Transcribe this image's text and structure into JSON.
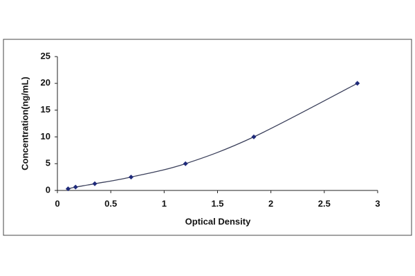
{
  "chart_data": {
    "type": "scatter",
    "x_label": "Optical Density",
    "y_label": "Concentration(ng/mL)",
    "x": [
      0.1,
      0.17,
      0.35,
      0.69,
      1.2,
      1.84,
      2.81
    ],
    "values": [
      0.31,
      0.625,
      1.25,
      2.5,
      5,
      10,
      20
    ],
    "color": "#1f2a7a",
    "line_color": "#3a3f5a",
    "trendline": true,
    "xlim": [
      0,
      3
    ],
    "xticks": [
      0,
      0.5,
      1,
      1.5,
      2,
      2.5,
      3
    ],
    "ylim": [
      0,
      25
    ],
    "yticks": [
      0,
      5,
      10,
      15,
      20,
      25
    ],
    "grid": false
  }
}
